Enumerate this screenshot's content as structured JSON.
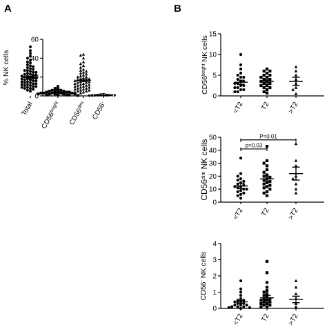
{
  "panel_letters": [
    "A",
    "B"
  ],
  "chart_data": [
    {
      "id": "A",
      "type": "scatter",
      "subtype": "dot-plot",
      "ylabel": "% NK cells",
      "ylim": [
        0,
        60
      ],
      "yticks": [
        0,
        20,
        40,
        60
      ],
      "categories": [
        {
          "base": "Total",
          "sup": ""
        },
        {
          "base": "CD56",
          "sup": "bright"
        },
        {
          "base": "CD56",
          "sup": "dim"
        },
        {
          "base": "CD56",
          "sup": "-"
        }
      ],
      "groups": [
        {
          "marker": "circle",
          "mean": 19.5,
          "sem": 1.2,
          "values": [
            52,
            48,
            45,
            42,
            40,
            38,
            36,
            35,
            33,
            32,
            31,
            30,
            29,
            28,
            27,
            27,
            26,
            25,
            25,
            24,
            23,
            23,
            22,
            22,
            21,
            21,
            20,
            20,
            19,
            19,
            18,
            18,
            17,
            17,
            16,
            16,
            15,
            15,
            14,
            14,
            13,
            13,
            12,
            12,
            11,
            11,
            10,
            10,
            9,
            9,
            8,
            8,
            7,
            6,
            5
          ]
        },
        {
          "marker": "square",
          "mean": 3.5,
          "sem": 0.4,
          "values": [
            10,
            8,
            7,
            6,
            6,
            5,
            5,
            5,
            4,
            4,
            4,
            4,
            3,
            3,
            3,
            3,
            3,
            2,
            2,
            2,
            2,
            2,
            1,
            1,
            1,
            1,
            0.5
          ]
        },
        {
          "marker": "triangle",
          "mean": 16.5,
          "sem": 1.3,
          "values": [
            44,
            43,
            40,
            36,
            34,
            32,
            30,
            28,
            27,
            26,
            25,
            24,
            23,
            22,
            21,
            20,
            20,
            19,
            18,
            18,
            17,
            17,
            16,
            16,
            15,
            15,
            14,
            14,
            13,
            13,
            12,
            12,
            11,
            11,
            10,
            10,
            9,
            9,
            8,
            8,
            7,
            7,
            6,
            6,
            5,
            5,
            4,
            4,
            3
          ]
        },
        {
          "marker": "triangle-down",
          "mean": 0.5,
          "sem": 0.1,
          "values": [
            1.5,
            1.2,
            1.0,
            0.8,
            0.6,
            0.5,
            0.4,
            0.3,
            0.2,
            0.1
          ]
        }
      ]
    },
    {
      "id": "B1",
      "type": "scatter",
      "subtype": "dot-plot",
      "ylabel": {
        "base": "CD56",
        "sup": "bright",
        "rest": " NK cells"
      },
      "ylim": [
        0,
        15
      ],
      "yticks": [
        0,
        5,
        10,
        15
      ],
      "categories": [
        "<T2",
        "T2",
        ">T2"
      ],
      "groups": [
        {
          "marker": "circle",
          "mean": 3.3,
          "sem": 0.5,
          "values": [
            10,
            7.5,
            6.5,
            5.5,
            5,
            4.5,
            4.5,
            4,
            3.5,
            3.5,
            3,
            3,
            2.5,
            2.5,
            2,
            2,
            1.5,
            1.5,
            1,
            1
          ]
        },
        {
          "marker": "square",
          "mean": 3.5,
          "sem": 0.4,
          "values": [
            6.5,
            6,
            6,
            5.5,
            5,
            5,
            4.5,
            4.5,
            4,
            4,
            3.5,
            3.5,
            3,
            3,
            2.5,
            2.5,
            2,
            2,
            1.5,
            1,
            0.7
          ]
        },
        {
          "marker": "triangle",
          "mean": 3.5,
          "sem": 1.0,
          "values": [
            7,
            6,
            5,
            4,
            3,
            2,
            1.5,
            0.5
          ]
        }
      ]
    },
    {
      "id": "B2",
      "type": "scatter",
      "subtype": "dot-plot",
      "ylabel": {
        "base": "CD56",
        "sup": "dim",
        "rest": " NK cells"
      },
      "ylim": [
        0,
        50
      ],
      "yticks": [
        0,
        10,
        20,
        30,
        40,
        50
      ],
      "categories": [
        "<T2",
        "T2",
        ">T2"
      ],
      "groups": [
        {
          "marker": "circle",
          "mean": 12.5,
          "sem": 2.0,
          "values": [
            34,
            22,
            20,
            18,
            17,
            16,
            15,
            14,
            13,
            12,
            12,
            11,
            10,
            10,
            9,
            8,
            7,
            6,
            5,
            3
          ]
        },
        {
          "marker": "square",
          "mean": 18,
          "sem": 2.0,
          "values": [
            43,
            32,
            30,
            28,
            25,
            23,
            21,
            20,
            19,
            18,
            17,
            16,
            15,
            14,
            13,
            12,
            11,
            10,
            8,
            7,
            5
          ]
        },
        {
          "marker": "triangle",
          "mean": 22,
          "sem": 5,
          "values": [
            45,
            32,
            28,
            20,
            18,
            14,
            10,
            7
          ]
        }
      ],
      "annotations": [
        {
          "text": "p=0.03",
          "from": 0,
          "to": 1,
          "level": 41
        },
        {
          "text": "P=0.01",
          "from": 0,
          "to": 2,
          "level": 48
        }
      ]
    },
    {
      "id": "B3",
      "type": "scatter",
      "subtype": "dot-plot",
      "ylabel": {
        "base": "CD56",
        "sup": "-",
        "rest": " NK cells"
      },
      "ylim": [
        0,
        4
      ],
      "yticks": [
        0,
        1,
        2,
        3,
        4
      ],
      "categories": [
        "<T2",
        "T2",
        ">T2"
      ],
      "groups": [
        {
          "marker": "circle",
          "mean": 0.4,
          "sem": 0.1,
          "values": [
            1.7,
            1.2,
            1.0,
            0.8,
            0.6,
            0.5,
            0.5,
            0.4,
            0.4,
            0.3,
            0.3,
            0.2,
            0.2,
            0.2,
            0.1,
            0.1,
            0.1,
            0.05,
            0.05,
            0.0
          ]
        },
        {
          "marker": "square",
          "mean": 0.65,
          "sem": 0.15,
          "values": [
            2.9,
            2.2,
            1.6,
            1.3,
            1.1,
            1.0,
            0.9,
            0.8,
            0.7,
            0.6,
            0.6,
            0.5,
            0.5,
            0.4,
            0.4,
            0.3,
            0.3,
            0.2,
            0.2,
            0.1,
            0.1
          ]
        },
        {
          "marker": "triangle",
          "mean": 0.55,
          "sem": 0.2,
          "values": [
            1.7,
            1.3,
            0.9,
            0.6,
            0.3,
            0.1
          ]
        }
      ]
    }
  ]
}
